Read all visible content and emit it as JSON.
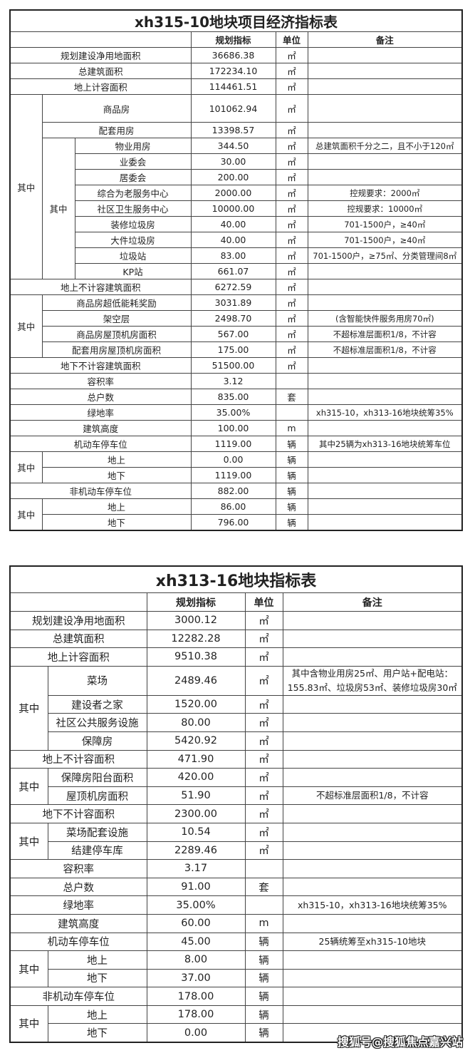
{
  "tables": [
    {
      "title": "xh315-10地块项目经济指标表",
      "headers": {
        "value": "规划指标",
        "unit": "单位",
        "note": "备注"
      },
      "rows": [
        {
          "label": "规划建设净用地面积",
          "value": "36686.38",
          "unit": "㎡",
          "note": ""
        },
        {
          "label": "总建筑面积",
          "value": "172234.10",
          "unit": "㎡",
          "note": ""
        },
        {
          "label": "地上计容面积",
          "value": "114461.51",
          "unit": "㎡",
          "note": ""
        },
        {
          "group": "其中",
          "items": [
            {
              "label": "商品房",
              "value": "101062.94",
              "unit": "㎡",
              "note": ""
            },
            {
              "label": "配套用房",
              "value": "13398.57",
              "unit": "㎡",
              "note": ""
            },
            {
              "group": "其中",
              "items": [
                {
                  "label": "物业用房",
                  "value": "344.50",
                  "unit": "㎡",
                  "note": "总建筑面积千分之二，且不小于120㎡"
                },
                {
                  "label": "业委会",
                  "value": "30.00",
                  "unit": "㎡",
                  "note": ""
                },
                {
                  "label": "居委会",
                  "value": "200.00",
                  "unit": "㎡",
                  "note": ""
                },
                {
                  "label": "综合为老服务中心",
                  "value": "2000.00",
                  "unit": "㎡",
                  "note": "控规要求：2000㎡"
                },
                {
                  "label": "社区卫生服务中心",
                  "value": "10000.00",
                  "unit": "㎡",
                  "note": "控规要求：10000㎡"
                },
                {
                  "label": "装修垃圾房",
                  "value": "40.00",
                  "unit": "㎡",
                  "note": "701-1500户，≥40㎡"
                },
                {
                  "label": "大件垃圾房",
                  "value": "40.00",
                  "unit": "㎡",
                  "note": "701-1500户，≥40㎡"
                },
                {
                  "label": "垃圾站",
                  "value": "83.00",
                  "unit": "㎡",
                  "note": "701-1500户，≥75㎡、分类管理间8㎡"
                },
                {
                  "label": "KP站",
                  "value": "661.07",
                  "unit": "㎡",
                  "note": ""
                }
              ]
            }
          ]
        },
        {
          "label": "地上不计容建筑面积",
          "value": "6272.59",
          "unit": "㎡",
          "note": ""
        },
        {
          "group": "其中",
          "items": [
            {
              "label": "商品房超低能耗奖励",
              "value": "3031.89",
              "unit": "㎡",
              "note": ""
            },
            {
              "label": "架空层",
              "value": "2498.70",
              "unit": "㎡",
              "note": "(含智能快件服务用房70㎡)"
            },
            {
              "label": "商品房屋顶机房面积",
              "value": "567.00",
              "unit": "㎡",
              "note": "不超标准层面积1/8，不计容"
            },
            {
              "label": "配套用房屋顶机房面积",
              "value": "175.00",
              "unit": "㎡",
              "note": "不超标准层面积1/8，不计容"
            }
          ]
        },
        {
          "label": "地下不计容建筑面积",
          "value": "51500.00",
          "unit": "㎡",
          "note": ""
        },
        {
          "label": "容积率",
          "value": "3.12",
          "unit": "",
          "note": ""
        },
        {
          "label": "总户数",
          "value": "835.00",
          "unit": "套",
          "note": ""
        },
        {
          "label": "绿地率",
          "value": "35.00%",
          "unit": "",
          "note": "xh315-10，xh313-16地块统筹35%"
        },
        {
          "label": "建筑高度",
          "value": "100.00",
          "unit": "m",
          "note": ""
        },
        {
          "label": "机动车停车位",
          "value": "1119.00",
          "unit": "辆",
          "note": "其中25辆为xh313-16地块统筹车位"
        },
        {
          "group": "其中",
          "items": [
            {
              "label": "地上",
              "value": "0.00",
              "unit": "辆",
              "note": ""
            },
            {
              "label": "地下",
              "value": "1119.00",
              "unit": "辆",
              "note": ""
            }
          ]
        },
        {
          "label": "非机动车停车位",
          "value": "882.00",
          "unit": "辆",
          "note": ""
        },
        {
          "group": "其中",
          "items": [
            {
              "label": "地上",
              "value": "86.00",
              "unit": "辆",
              "note": ""
            },
            {
              "label": "地下",
              "value": "796.00",
              "unit": "辆",
              "note": ""
            }
          ]
        }
      ]
    },
    {
      "title": "xh313-16地块指标表",
      "headers": {
        "value": "规划指标",
        "unit": "单位",
        "note": "备注"
      },
      "rows": [
        {
          "label": "规划建设净用地面积",
          "value": "3000.12",
          "unit": "㎡",
          "note": ""
        },
        {
          "label": "总建筑面积",
          "value": "12282.28",
          "unit": "㎡",
          "note": ""
        },
        {
          "label": "地上计容面积",
          "value": "9510.38",
          "unit": "㎡",
          "note": ""
        },
        {
          "group": "其中",
          "items": [
            {
              "label": "菜场",
              "value": "2489.46",
              "unit": "㎡",
              "note": "其中含物业用房25㎡、用户站+配电站：155.83㎡、垃圾房53㎡、装修垃圾房30㎡"
            },
            {
              "label": "建设者之家",
              "value": "1520.00",
              "unit": "㎡",
              "note": ""
            },
            {
              "label": "社区公共服务设施",
              "value": "80.00",
              "unit": "㎡",
              "note": ""
            },
            {
              "label": "保障房",
              "value": "5420.92",
              "unit": "㎡",
              "note": ""
            }
          ]
        },
        {
          "label": "地上不计容面积",
          "value": "471.90",
          "unit": "㎡",
          "note": ""
        },
        {
          "group": "其中",
          "items": [
            {
              "label": "保障房阳台面积",
              "value": "420.00",
              "unit": "㎡",
              "note": ""
            },
            {
              "label": "屋顶机房面积",
              "value": "51.90",
              "unit": "㎡",
              "note": "不超标准层面积1/8，不计容"
            }
          ]
        },
        {
          "label": "地下不计容面积",
          "value": "2300.00",
          "unit": "㎡",
          "note": ""
        },
        {
          "group": "其中",
          "items": [
            {
              "label": "菜场配套设施",
              "value": "10.54",
              "unit": "㎡",
              "note": ""
            },
            {
              "label": "结建停车库",
              "value": "2289.46",
              "unit": "㎡",
              "note": ""
            }
          ]
        },
        {
          "label": "容积率",
          "value": "3.17",
          "unit": "",
          "note": ""
        },
        {
          "label": "总户数",
          "value": "91.00",
          "unit": "套",
          "note": ""
        },
        {
          "label": "绿地率",
          "value": "35.00%",
          "unit": "",
          "note": "xh315-10，xh313-16地块统筹35%"
        },
        {
          "label": "建筑高度",
          "value": "60.00",
          "unit": "m",
          "note": ""
        },
        {
          "label": "机动车停车位",
          "value": "45.00",
          "unit": "辆",
          "note": "25辆统筹至xh315-10地块"
        },
        {
          "group": "其中",
          "items": [
            {
              "label": "地上",
              "value": "8.00",
              "unit": "辆",
              "note": ""
            },
            {
              "label": "地下",
              "value": "37.00",
              "unit": "辆",
              "note": ""
            }
          ]
        },
        {
          "label": "非机动车停车位",
          "value": "178.00",
          "unit": "辆",
          "note": ""
        },
        {
          "group": "其中",
          "items": [
            {
              "label": "地上",
              "value": "178.00",
              "unit": "辆",
              "note": ""
            },
            {
              "label": "地下",
              "value": "0.00",
              "unit": "辆",
              "note": ""
            }
          ]
        }
      ]
    }
  ],
  "watermark": "搜狐号@搜狐焦点嘉兴站"
}
